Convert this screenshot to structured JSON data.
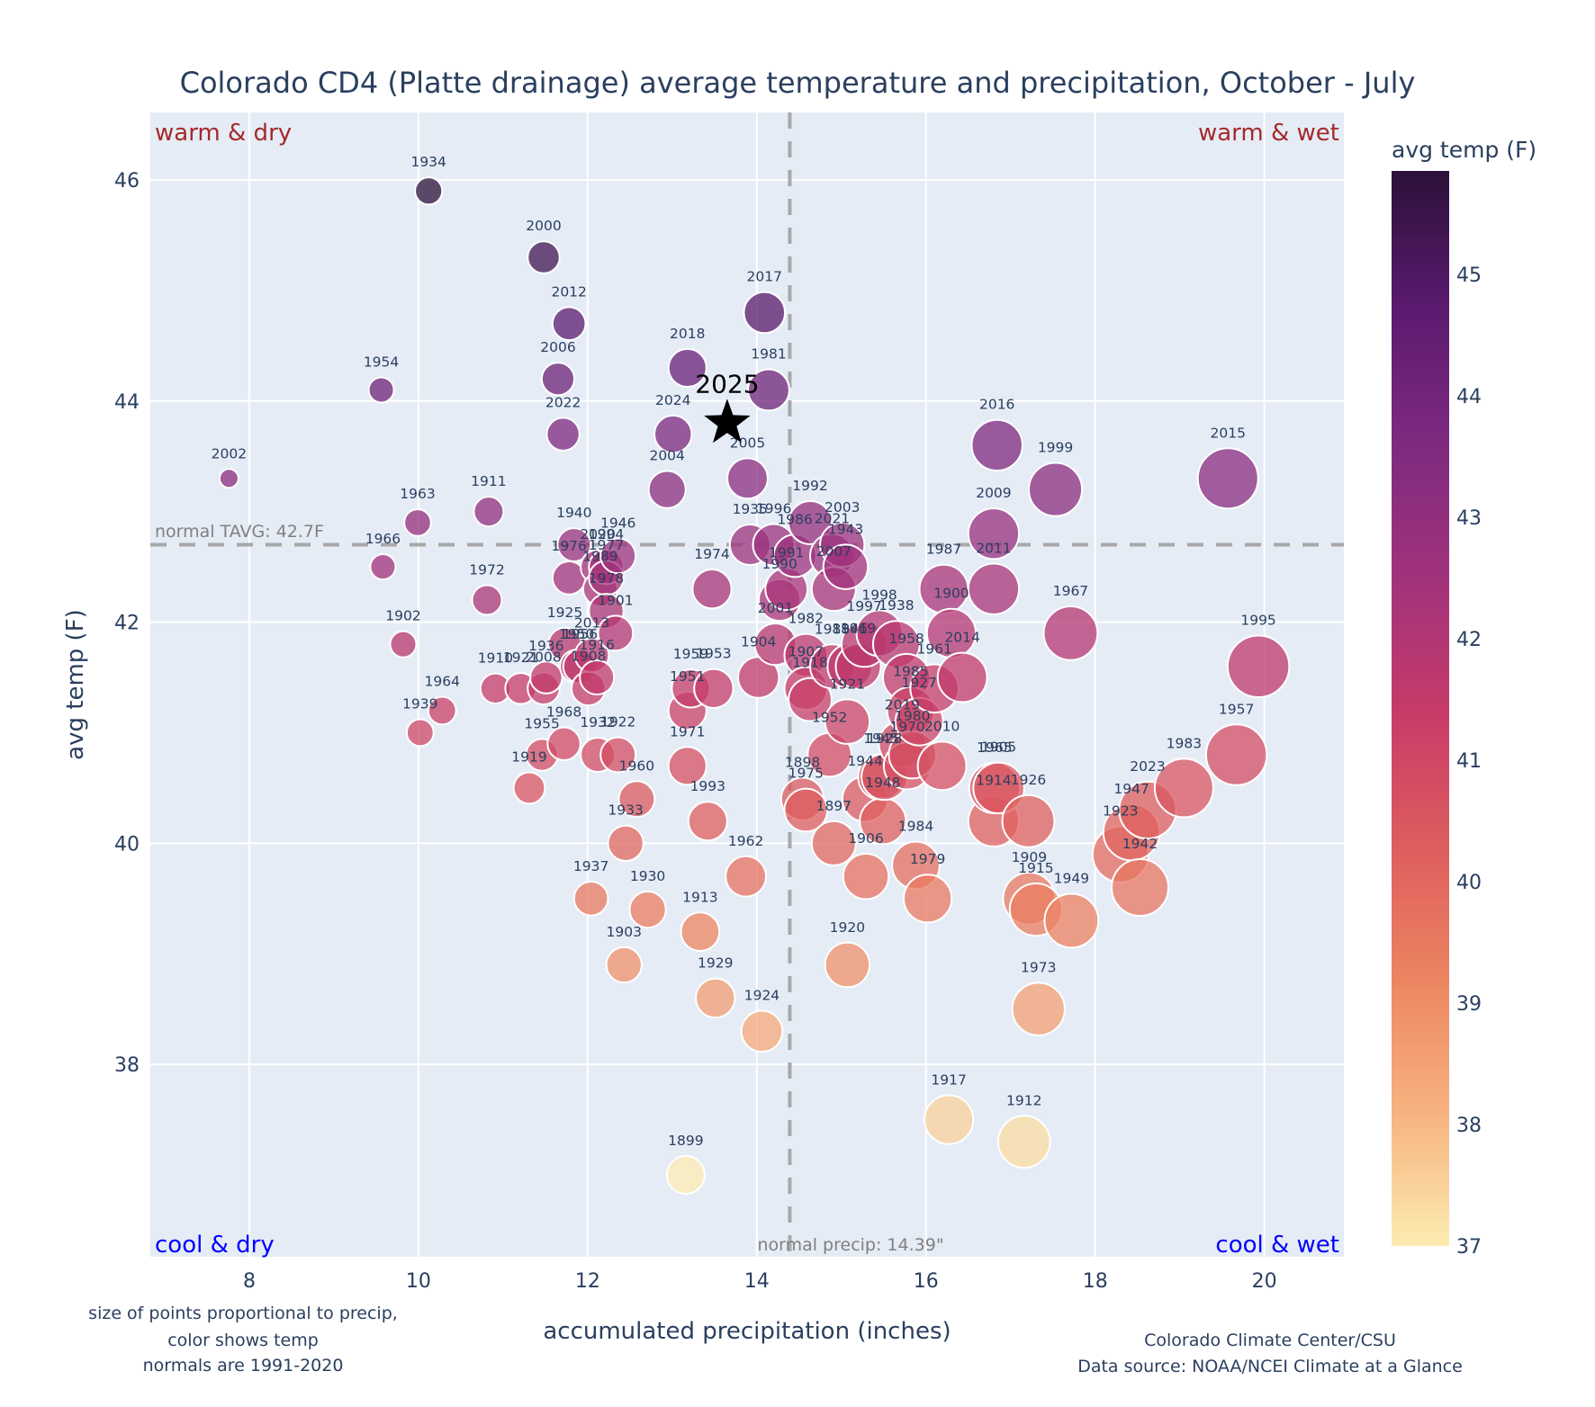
{
  "chart_data": {
    "type": "scatter",
    "title": "Colorado CD4 (Platte drainage) average temperature and precipitation, October - July",
    "xlabel": "accumulated precipitation (inches)",
    "ylabel": "avg temp (F)",
    "xlim": [
      6.83,
      20.94
    ],
    "ylim": [
      36.26,
      46.61
    ],
    "xticks": [
      8,
      10,
      12,
      14,
      16,
      18,
      20
    ],
    "yticks": [
      38,
      40,
      42,
      44,
      46
    ],
    "grid": true,
    "colorbar": {
      "title": "avg temp (F)",
      "range": [
        37,
        45.85
      ],
      "ticks": [
        37,
        38,
        39,
        40,
        41,
        42,
        43,
        44,
        45
      ],
      "colorscale": "magma_r",
      "stops": [
        "#fcecb1",
        "#f7b27f",
        "#ec8461",
        "#dd5c5e",
        "#c53b69",
        "#a0327c",
        "#7d2a7f",
        "#5a1a6e",
        "#2b1139"
      ]
    },
    "size_encoding": "precip",
    "normals": {
      "tavg": 42.7,
      "tavg_label": "normal TAVG: 42.7F",
      "precip": 14.39,
      "precip_label": "normal precip: 14.39\""
    },
    "quadrants": {
      "top_left": "warm & dry",
      "top_right": "warm & wet",
      "bottom_left": "cool & dry",
      "bottom_right": "cool & wet"
    },
    "highlight": {
      "label": "2025",
      "x": 13.65,
      "y": 43.8,
      "marker": "star"
    },
    "notes": {
      "left": [
        "size of points proportional to precip,",
        "color shows temp",
        "normals are 1991-2020"
      ],
      "right": [
        "Colorado Climate Center/CSU",
        "Data source: NOAA/NCEI Climate at a Glance"
      ]
    },
    "points": [
      {
        "year": "1934",
        "x": 10.12,
        "y": 45.9
      },
      {
        "year": "2000",
        "x": 11.48,
        "y": 45.3
      },
      {
        "year": "2012",
        "x": 11.78,
        "y": 44.7
      },
      {
        "year": "2006",
        "x": 11.65,
        "y": 44.2
      },
      {
        "year": "2022",
        "x": 11.71,
        "y": 43.7
      },
      {
        "year": "1954",
        "x": 9.56,
        "y": 44.1
      },
      {
        "year": "2002",
        "x": 7.76,
        "y": 43.3
      },
      {
        "year": "1963",
        "x": 9.99,
        "y": 42.9
      },
      {
        "year": "1911",
        "x": 10.83,
        "y": 43.0
      },
      {
        "year": "1966",
        "x": 9.58,
        "y": 42.5
      },
      {
        "year": "1972",
        "x": 10.81,
        "y": 42.2
      },
      {
        "year": "1902",
        "x": 9.82,
        "y": 41.8
      },
      {
        "year": "1964",
        "x": 10.28,
        "y": 41.2
      },
      {
        "year": "1939",
        "x": 10.02,
        "y": 41.0
      },
      {
        "year": "2017",
        "x": 14.09,
        "y": 44.8
      },
      {
        "year": "2018",
        "x": 13.18,
        "y": 44.3
      },
      {
        "year": "1981",
        "x": 14.14,
        "y": 44.1
      },
      {
        "year": "2024",
        "x": 13.01,
        "y": 43.7
      },
      {
        "year": "2004",
        "x": 12.94,
        "y": 43.2
      },
      {
        "year": "2005",
        "x": 13.89,
        "y": 43.3
      },
      {
        "year": "1940",
        "x": 11.84,
        "y": 42.7
      },
      {
        "year": "1946",
        "x": 12.36,
        "y": 42.6
      },
      {
        "year": "2020",
        "x": 12.12,
        "y": 42.5
      },
      {
        "year": "1994",
        "x": 12.22,
        "y": 42.5
      },
      {
        "year": "1976",
        "x": 11.78,
        "y": 42.4
      },
      {
        "year": "1977",
        "x": 12.22,
        "y": 42.4
      },
      {
        "year": "1989",
        "x": 12.15,
        "y": 42.3
      },
      {
        "year": "1978",
        "x": 12.22,
        "y": 42.1
      },
      {
        "year": "1925",
        "x": 11.73,
        "y": 41.8
      },
      {
        "year": "1956",
        "x": 11.91,
        "y": 41.6
      },
      {
        "year": "2013",
        "x": 12.05,
        "y": 41.7
      },
      {
        "year": "1901",
        "x": 12.33,
        "y": 41.9
      },
      {
        "year": "1936",
        "x": 11.51,
        "y": 41.5
      },
      {
        "year": "1950",
        "x": 11.87,
        "y": 41.6
      },
      {
        "year": "1916",
        "x": 12.11,
        "y": 41.5
      },
      {
        "year": "1910",
        "x": 10.91,
        "y": 41.4
      },
      {
        "year": "1921b",
        "x": 11.21,
        "y": 41.4
      },
      {
        "year": "2008",
        "x": 11.48,
        "y": 41.4
      },
      {
        "year": "1908",
        "x": 12.01,
        "y": 41.4
      },
      {
        "year": "1968",
        "x": 11.72,
        "y": 40.9
      },
      {
        "year": "1955",
        "x": 11.46,
        "y": 40.8
      },
      {
        "year": "1932",
        "x": 12.12,
        "y": 40.8
      },
      {
        "year": "1922",
        "x": 12.36,
        "y": 40.8
      },
      {
        "year": "1919",
        "x": 11.31,
        "y": 40.5
      },
      {
        "year": "1960",
        "x": 12.58,
        "y": 40.4
      },
      {
        "year": "1933",
        "x": 12.45,
        "y": 40.0
      },
      {
        "year": "1937",
        "x": 12.04,
        "y": 39.5
      },
      {
        "year": "1930",
        "x": 12.71,
        "y": 39.4
      },
      {
        "year": "1903",
        "x": 12.43,
        "y": 38.9
      },
      {
        "year": "1959",
        "x": 13.22,
        "y": 41.4
      },
      {
        "year": "1953",
        "x": 13.49,
        "y": 41.4
      },
      {
        "year": "1951",
        "x": 13.18,
        "y": 41.2
      },
      {
        "year": "1971",
        "x": 13.18,
        "y": 40.7
      },
      {
        "year": "1974",
        "x": 13.47,
        "y": 42.3
      },
      {
        "year": "1904",
        "x": 14.02,
        "y": 41.5
      },
      {
        "year": "1993",
        "x": 13.42,
        "y": 40.2
      },
      {
        "year": "1962",
        "x": 13.87,
        "y": 39.7
      },
      {
        "year": "1913",
        "x": 13.33,
        "y": 39.2
      },
      {
        "year": "1929",
        "x": 13.51,
        "y": 38.6
      },
      {
        "year": "1924",
        "x": 14.06,
        "y": 38.3
      },
      {
        "year": "1899",
        "x": 13.16,
        "y": 37.0
      },
      {
        "year": "1935",
        "x": 13.92,
        "y": 42.7
      },
      {
        "year": "1996",
        "x": 14.2,
        "y": 42.7
      },
      {
        "year": "1992",
        "x": 14.63,
        "y": 42.9
      },
      {
        "year": "1986",
        "x": 14.45,
        "y": 42.6
      },
      {
        "year": "2003",
        "x": 15.01,
        "y": 42.7
      },
      {
        "year": "2021",
        "x": 14.89,
        "y": 42.6
      },
      {
        "year": "1943",
        "x": 15.05,
        "y": 42.5
      },
      {
        "year": "1991",
        "x": 14.35,
        "y": 42.3
      },
      {
        "year": "2007",
        "x": 14.91,
        "y": 42.3
      },
      {
        "year": "1990",
        "x": 14.27,
        "y": 42.2
      },
      {
        "year": "2001",
        "x": 14.22,
        "y": 41.8
      },
      {
        "year": "1982",
        "x": 14.58,
        "y": 41.7
      },
      {
        "year": "1988",
        "x": 14.89,
        "y": 41.6
      },
      {
        "year": "1941",
        "x": 15.1,
        "y": 41.6
      },
      {
        "year": "1998",
        "x": 15.45,
        "y": 41.9
      },
      {
        "year": "1997",
        "x": 15.27,
        "y": 41.8
      },
      {
        "year": "1938",
        "x": 15.65,
        "y": 41.8
      },
      {
        "year": "1907",
        "x": 14.58,
        "y": 41.4
      },
      {
        "year": "1918",
        "x": 14.63,
        "y": 41.3
      },
      {
        "year": "1969",
        "x": 15.2,
        "y": 41.6
      },
      {
        "year": "1958",
        "x": 15.77,
        "y": 41.5
      },
      {
        "year": "1961",
        "x": 16.1,
        "y": 41.4
      },
      {
        "year": "2014",
        "x": 16.43,
        "y": 41.5
      },
      {
        "year": "1921",
        "x": 15.07,
        "y": 41.1
      },
      {
        "year": "1985",
        "x": 15.82,
        "y": 41.2
      },
      {
        "year": "1927",
        "x": 15.92,
        "y": 41.1
      },
      {
        "year": "1952",
        "x": 14.86,
        "y": 40.8
      },
      {
        "year": "2019",
        "x": 15.72,
        "y": 40.9
      },
      {
        "year": "1980",
        "x": 15.84,
        "y": 40.8
      },
      {
        "year": "2010",
        "x": 16.19,
        "y": 40.7
      },
      {
        "year": "1945",
        "x": 15.47,
        "y": 40.6
      },
      {
        "year": "1928",
        "x": 15.51,
        "y": 40.6
      },
      {
        "year": "1944",
        "x": 15.28,
        "y": 40.4
      },
      {
        "year": "1970",
        "x": 15.78,
        "y": 40.7
      },
      {
        "year": "1898",
        "x": 14.54,
        "y": 40.4
      },
      {
        "year": "1975",
        "x": 14.58,
        "y": 40.3
      },
      {
        "year": "1948",
        "x": 15.49,
        "y": 40.2
      },
      {
        "year": "1897",
        "x": 14.91,
        "y": 40.0
      },
      {
        "year": "1906",
        "x": 15.29,
        "y": 39.7
      },
      {
        "year": "1984",
        "x": 15.88,
        "y": 39.8
      },
      {
        "year": "1979",
        "x": 16.02,
        "y": 39.5
      },
      {
        "year": "1920",
        "x": 15.07,
        "y": 38.9
      },
      {
        "year": "1917",
        "x": 16.27,
        "y": 37.5
      },
      {
        "year": "1912",
        "x": 17.16,
        "y": 37.3
      },
      {
        "year": "1973",
        "x": 17.33,
        "y": 38.5
      },
      {
        "year": "1900",
        "x": 16.3,
        "y": 41.9
      },
      {
        "year": "1987",
        "x": 16.21,
        "y": 42.3
      },
      {
        "year": "2011",
        "x": 16.8,
        "y": 42.3
      },
      {
        "year": "2009",
        "x": 16.8,
        "y": 42.8
      },
      {
        "year": "2016",
        "x": 16.84,
        "y": 43.6
      },
      {
        "year": "1999",
        "x": 17.53,
        "y": 43.2
      },
      {
        "year": "1967",
        "x": 17.71,
        "y": 41.9
      },
      {
        "year": "1965",
        "x": 16.81,
        "y": 40.5
      },
      {
        "year": "1905",
        "x": 16.86,
        "y": 40.5
      },
      {
        "year": "1914",
        "x": 16.8,
        "y": 40.2
      },
      {
        "year": "1926",
        "x": 17.21,
        "y": 40.2
      },
      {
        "year": "1909",
        "x": 17.22,
        "y": 39.5
      },
      {
        "year": "1915",
        "x": 17.3,
        "y": 39.4
      },
      {
        "year": "1949",
        "x": 17.72,
        "y": 39.3
      },
      {
        "year": "1923",
        "x": 18.3,
        "y": 39.9
      },
      {
        "year": "1947",
        "x": 18.43,
        "y": 40.1
      },
      {
        "year": "2023",
        "x": 18.62,
        "y": 40.3
      },
      {
        "year": "1942",
        "x": 18.53,
        "y": 39.6
      },
      {
        "year": "1983",
        "x": 19.05,
        "y": 40.5
      },
      {
        "year": "1957",
        "x": 19.67,
        "y": 40.8
      },
      {
        "year": "1995",
        "x": 19.93,
        "y": 41.6
      },
      {
        "year": "2015",
        "x": 19.57,
        "y": 43.3
      }
    ]
  }
}
